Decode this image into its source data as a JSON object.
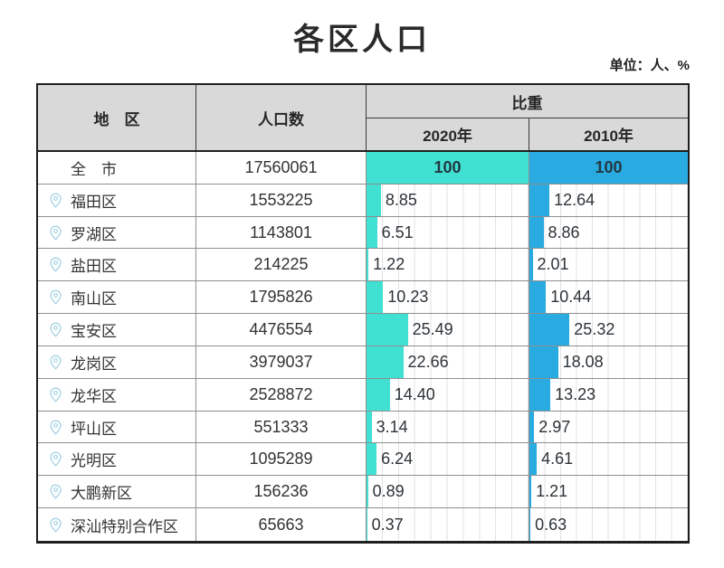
{
  "title": "各区人口",
  "unit_label": "单位：人、%",
  "colors": {
    "bar_2020": "#40E0D2",
    "bar_2010": "#29ABE2",
    "header_bg": "#d9d9d9",
    "pin_icon": "#a6d2e4"
  },
  "table": {
    "headers": {
      "region": "地　区",
      "population": "人口数",
      "proportion": "比重",
      "year_2020": "2020年",
      "year_2010": "2010年"
    },
    "rows": [
      {
        "region": "全　市",
        "is_total": true,
        "population": "17560061",
        "p2020": {
          "label": "100",
          "value": 100
        },
        "p2010": {
          "label": "100",
          "value": 100
        }
      },
      {
        "region": "福田区",
        "is_total": false,
        "population": "1553225",
        "p2020": {
          "label": "8.85",
          "value": 8.85
        },
        "p2010": {
          "label": "12.64",
          "value": 12.64
        }
      },
      {
        "region": "罗湖区",
        "is_total": false,
        "population": "1143801",
        "p2020": {
          "label": "6.51",
          "value": 6.51
        },
        "p2010": {
          "label": "8.86",
          "value": 8.86
        }
      },
      {
        "region": "盐田区",
        "is_total": false,
        "population": "214225",
        "p2020": {
          "label": "1.22",
          "value": 1.22
        },
        "p2010": {
          "label": "2.01",
          "value": 2.01
        }
      },
      {
        "region": "南山区",
        "is_total": false,
        "population": "1795826",
        "p2020": {
          "label": "10.23",
          "value": 10.23
        },
        "p2010": {
          "label": "10.44",
          "value": 10.44
        }
      },
      {
        "region": "宝安区",
        "is_total": false,
        "population": "4476554",
        "p2020": {
          "label": "25.49",
          "value": 25.49
        },
        "p2010": {
          "label": "25.32",
          "value": 25.32
        }
      },
      {
        "region": "龙岗区",
        "is_total": false,
        "population": "3979037",
        "p2020": {
          "label": "22.66",
          "value": 22.66
        },
        "p2010": {
          "label": "18.08",
          "value": 18.08
        }
      },
      {
        "region": "龙华区",
        "is_total": false,
        "population": "2528872",
        "p2020": {
          "label": "14.40",
          "value": 14.4
        },
        "p2010": {
          "label": "13.23",
          "value": 13.23
        }
      },
      {
        "region": "坪山区",
        "is_total": false,
        "population": "551333",
        "p2020": {
          "label": "3.14",
          "value": 3.14
        },
        "p2010": {
          "label": "2.97",
          "value": 2.97
        }
      },
      {
        "region": "光明区",
        "is_total": false,
        "population": "1095289",
        "p2020": {
          "label": "6.24",
          "value": 6.24
        },
        "p2010": {
          "label": "4.61",
          "value": 4.61
        }
      },
      {
        "region": "大鹏新区",
        "is_total": false,
        "population": "156236",
        "p2020": {
          "label": "0.89",
          "value": 0.89
        },
        "p2010": {
          "label": "1.21",
          "value": 1.21
        }
      },
      {
        "region": "深汕特别合作区",
        "is_total": false,
        "population": "65663",
        "p2020": {
          "label": "0.37",
          "value": 0.37
        },
        "p2010": {
          "label": "0.63",
          "value": 0.63
        }
      }
    ]
  },
  "chart_data": {
    "type": "bar",
    "title": "各区人口",
    "subtitle": "单位：人、%",
    "categories": [
      "全市",
      "福田区",
      "罗湖区",
      "盐田区",
      "南山区",
      "宝安区",
      "龙岗区",
      "龙华区",
      "坪山区",
      "光明区",
      "大鹏新区",
      "深汕特别合作区"
    ],
    "population": [
      17560061,
      1553225,
      1143801,
      214225,
      1795826,
      4476554,
      3979037,
      2528872,
      551333,
      1095289,
      156236,
      65663
    ],
    "series": [
      {
        "name": "2020年",
        "color": "#40E0D2",
        "values": [
          100,
          8.85,
          6.51,
          1.22,
          10.23,
          25.49,
          22.66,
          14.4,
          3.14,
          6.24,
          0.89,
          0.37
        ]
      },
      {
        "name": "2010年",
        "color": "#29ABE2",
        "values": [
          100,
          12.64,
          8.86,
          2.01,
          10.44,
          25.32,
          18.08,
          13.23,
          2.97,
          4.61,
          1.21,
          0.63
        ]
      }
    ],
    "xlim": [
      0,
      100
    ],
    "grid": true,
    "orientation": "horizontal",
    "legend_position": "column-headers"
  }
}
